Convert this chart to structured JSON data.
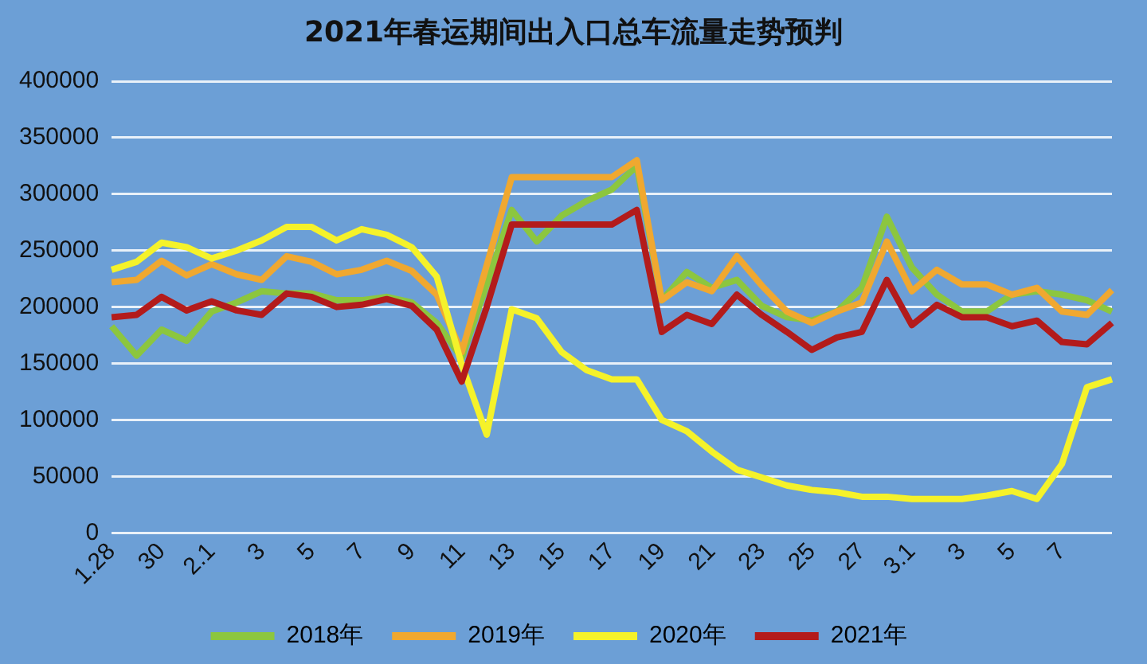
{
  "chart_data": {
    "type": "line",
    "title": "2021年春运期间出入口总车流量走势预判",
    "categories": [
      "1.28",
      null,
      "30",
      null,
      "2.1",
      null,
      "3",
      null,
      "5",
      null,
      "7",
      null,
      "9",
      null,
      "11",
      null,
      "13",
      null,
      "15",
      null,
      "17",
      null,
      "19",
      null,
      "21",
      null,
      "23",
      null,
      "25",
      null,
      "27",
      null,
      "3.1",
      null,
      "3",
      null,
      "5",
      null,
      "7",
      null,
      null
    ],
    "series": [
      {
        "name": "2018年",
        "color": "#8cc63f",
        "values": [
          183000,
          157000,
          180000,
          170000,
          196000,
          204000,
          214000,
          212000,
          212000,
          206000,
          206000,
          209000,
          204000,
          186000,
          155000,
          220000,
          286000,
          258000,
          281000,
          294000,
          304000,
          325000,
          206000,
          231000,
          217000,
          224000,
          201000,
          191000,
          188000,
          196000,
          217000,
          280000,
          235000,
          211000,
          196000,
          196000,
          211000,
          214000,
          211000,
          206000,
          196000
        ]
      },
      {
        "name": "2019年",
        "color": "#f0a830",
        "values": [
          222000,
          224000,
          241000,
          228000,
          238000,
          229000,
          224000,
          245000,
          240000,
          229000,
          233000,
          241000,
          232000,
          211000,
          160000,
          237000,
          315000,
          315000,
          315000,
          315000,
          315000,
          330000,
          206000,
          222000,
          214000,
          245000,
          219000,
          196000,
          186000,
          196000,
          204000,
          258000,
          214000,
          233000,
          220000,
          220000,
          211000,
          217000,
          196000,
          193000,
          215000
        ]
      },
      {
        "name": "2020年",
        "color": "#f5f22a",
        "values": [
          233000,
          240000,
          257000,
          253000,
          243000,
          250000,
          259000,
          271000,
          271000,
          259000,
          269000,
          264000,
          253000,
          227000,
          149000,
          87000,
          198000,
          190000,
          160000,
          144000,
          136000,
          136000,
          100000,
          90000,
          72000,
          56000,
          49000,
          42000,
          38000,
          36000,
          32000,
          32000,
          30000,
          30000,
          30000,
          33000,
          37000,
          30000,
          61000,
          129000,
          136000
        ]
      },
      {
        "name": "2021年",
        "color": "#b31b1b",
        "values": [
          191000,
          193000,
          209000,
          197000,
          205000,
          197000,
          193000,
          212000,
          209000,
          200000,
          202000,
          207000,
          201000,
          180000,
          134000,
          200000,
          273000,
          273000,
          273000,
          273000,
          273000,
          286000,
          178000,
          193000,
          185000,
          211000,
          193000,
          178000,
          162000,
          173000,
          178000,
          224000,
          184000,
          202000,
          191000,
          191000,
          183000,
          188000,
          169000,
          167000,
          186000
        ]
      }
    ],
    "ylim": [
      0,
      400000
    ],
    "yticks": [
      0,
      50000,
      100000,
      150000,
      200000,
      250000,
      300000,
      350000,
      400000
    ],
    "grid": "y",
    "legend": "bottom",
    "marker": "none",
    "line_style": "solid"
  }
}
